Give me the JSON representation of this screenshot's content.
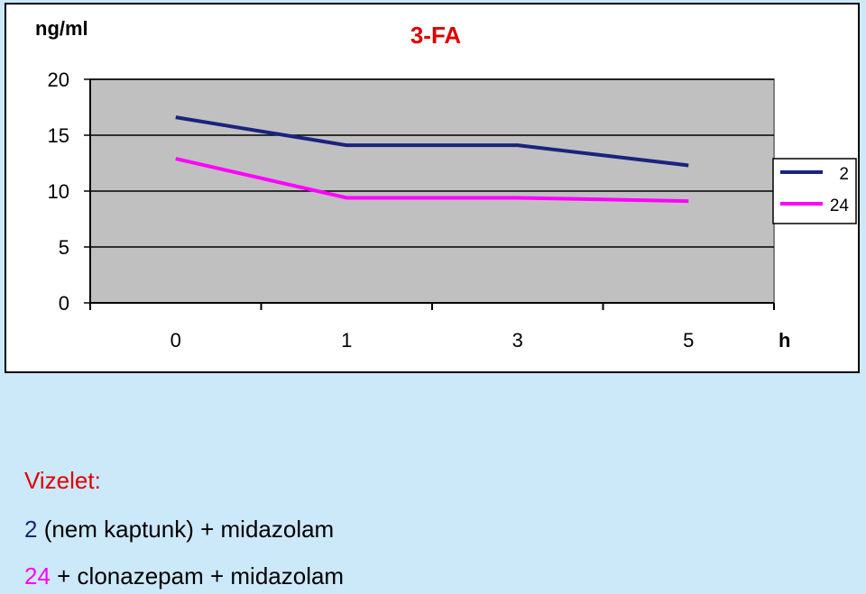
{
  "chart_data": {
    "type": "line",
    "title": "3-FA",
    "ylabel": "ng/ml",
    "xlabel": "h",
    "categories": [
      "0",
      "1",
      "3",
      "5"
    ],
    "ylim": [
      0,
      20
    ],
    "yticks": [
      "0",
      "5",
      "10",
      "15",
      "20"
    ],
    "grid": "horizontal",
    "legend": "right",
    "series": [
      {
        "name": "2",
        "color": "#000080",
        "values": [
          16.6,
          14.1,
          14.1,
          12.3
        ]
      },
      {
        "name": "24",
        "color": "#ff00ff",
        "values": [
          12.9,
          9.4,
          9.4,
          9.1
        ]
      }
    ]
  },
  "colors": {
    "title": "#dd0000",
    "plot_bg": "#c0c0c0",
    "series_2": "#1a237e",
    "series_24": "#ff00ff",
    "page_bg": "#cce9fa"
  },
  "caption": {
    "title": "Vizelet:",
    "line1_key": "2",
    "line1_text": " (nem kaptunk) + midazolam",
    "line2_key": "24",
    "line2_text": " + clonazepam + midazolam"
  }
}
